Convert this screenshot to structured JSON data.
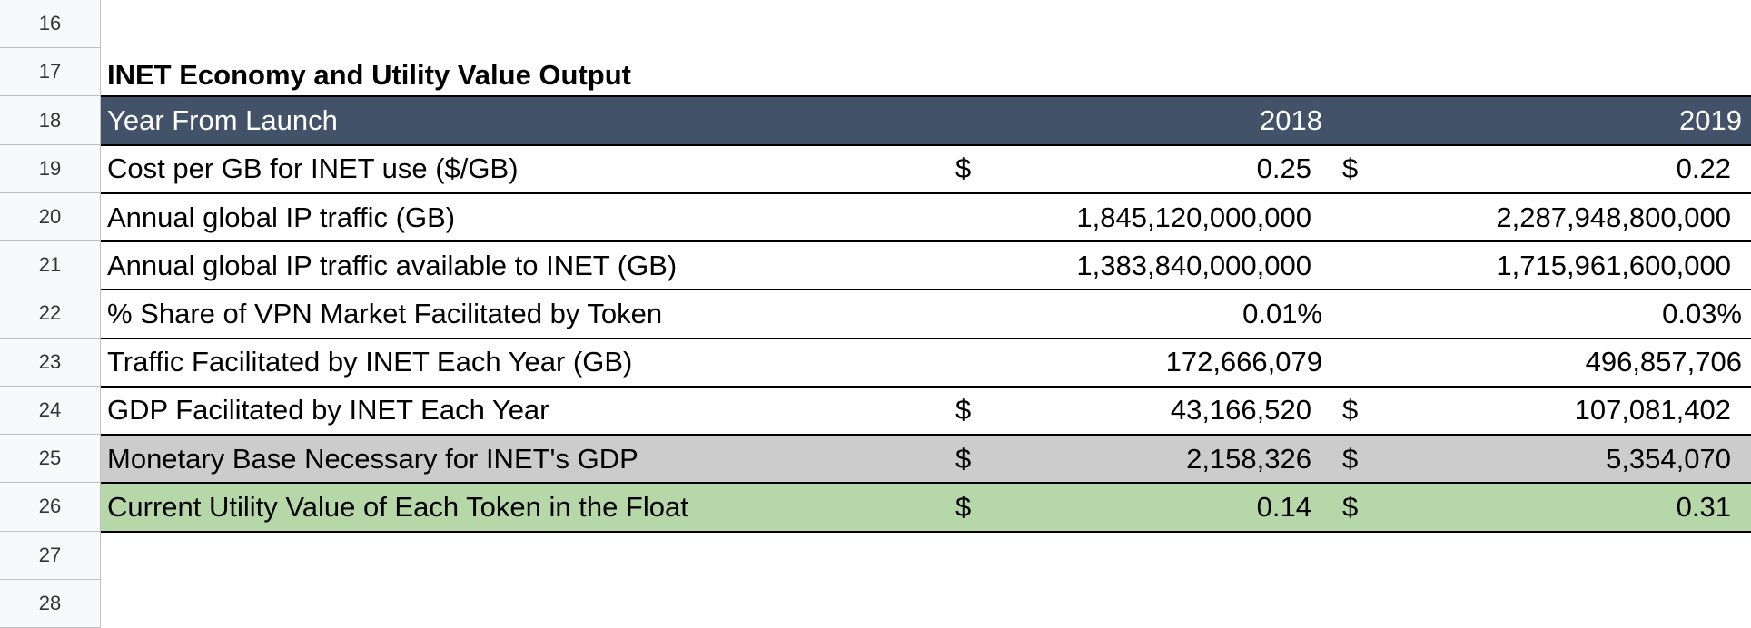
{
  "sheet": {
    "row_numbers": [
      "16",
      "17",
      "18",
      "19",
      "20",
      "21",
      "22",
      "23",
      "24",
      "25",
      "26",
      "27",
      "28"
    ],
    "title": "INET Economy and Utility Value Output",
    "header": {
      "label": "Year From Launch",
      "years": [
        "2018",
        "2019"
      ],
      "fill": "#425269"
    },
    "rows": [
      {
        "label": "Cost per GB for INET use ($/GB)",
        "cells": [
          {
            "symbol": "$",
            "value": "0.25"
          },
          {
            "symbol": "$",
            "value": "0.22"
          }
        ]
      },
      {
        "label": "Annual global IP traffic (GB)",
        "cells": [
          {
            "value": "1,845,120,000,000",
            "indent": true
          },
          {
            "value": "2,287,948,800,000",
            "indent": true
          }
        ]
      },
      {
        "label": "Annual global IP traffic available to INET (GB)",
        "cells": [
          {
            "value": "1,383,840,000,000",
            "indent": true
          },
          {
            "value": "1,715,961,600,000",
            "indent": true
          }
        ]
      },
      {
        "label": "% Share of VPN Market Facilitated by Token",
        "cells": [
          {
            "value": "0.01%"
          },
          {
            "value": "0.03%"
          }
        ]
      },
      {
        "label": "Traffic Facilitated by INET Each Year (GB)",
        "cells": [
          {
            "value": "172,666,079"
          },
          {
            "value": "496,857,706"
          }
        ]
      },
      {
        "label": "GDP Facilitated by INET Each Year",
        "cells": [
          {
            "symbol": "$",
            "value": "43,166,520"
          },
          {
            "symbol": "$",
            "value": "107,081,402"
          }
        ]
      },
      {
        "label": "Monetary Base Necessary for INET's GDP",
        "fill": "#cccccc",
        "cells": [
          {
            "symbol": "$",
            "value": "2,158,326"
          },
          {
            "symbol": "$",
            "value": "5,354,070"
          }
        ]
      },
      {
        "label": "Current Utility Value of Each Token in the Float",
        "fill": "#b6d7a8",
        "cells": [
          {
            "symbol": "$",
            "value": "0.14"
          },
          {
            "symbol": "$",
            "value": "0.31"
          }
        ]
      }
    ]
  }
}
